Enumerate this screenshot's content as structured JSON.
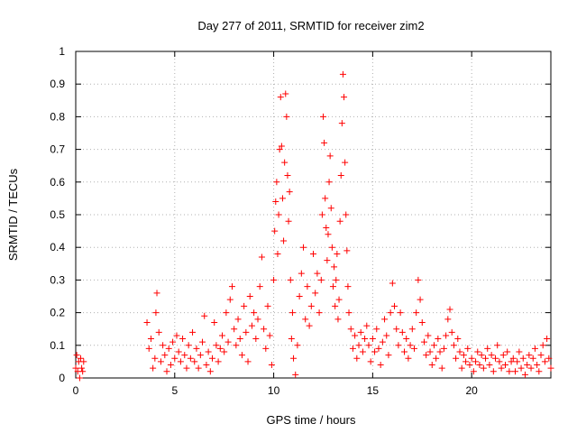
{
  "chart_data": {
    "type": "scatter",
    "title": "Day 277 of 2011, SRMTID for receiver zim2",
    "xlabel": "GPS time / hours",
    "ylabel": "SRMTID / TECUs",
    "xlim": [
      0,
      24
    ],
    "ylim": [
      0,
      1
    ],
    "xticks": [
      0,
      5,
      10,
      15,
      20
    ],
    "xtick_labels": [
      "0",
      "5",
      "10",
      "15",
      "20"
    ],
    "yticks": [
      0,
      0.1,
      0.2,
      0.3,
      0.4,
      0.5,
      0.6,
      0.7,
      0.8,
      0.9,
      1
    ],
    "ytick_labels": [
      "0",
      "0.1",
      "0.2",
      "0.3",
      "0.4",
      "0.5",
      "0.6",
      "0.7",
      "0.8",
      "0.9",
      "1"
    ],
    "grid": true,
    "marker": "plus",
    "series": [
      {
        "name": "zim2",
        "color": "#ff0000",
        "points": [
          [
            0.0,
            0.03
          ],
          [
            0.05,
            0.07
          ],
          [
            0.1,
            0.02
          ],
          [
            0.15,
            0.05
          ],
          [
            0.2,
            0.0
          ],
          [
            0.25,
            0.06
          ],
          [
            0.3,
            0.03
          ],
          [
            0.35,
            0.02
          ],
          [
            0.4,
            0.05
          ],
          [
            3.6,
            0.17
          ],
          [
            3.7,
            0.09
          ],
          [
            3.8,
            0.12
          ],
          [
            3.9,
            0.03
          ],
          [
            4.0,
            0.06
          ],
          [
            4.05,
            0.2
          ],
          [
            4.1,
            0.26
          ],
          [
            4.2,
            0.14
          ],
          [
            4.3,
            0.05
          ],
          [
            4.4,
            0.1
          ],
          [
            4.5,
            0.07
          ],
          [
            4.6,
            0.02
          ],
          [
            4.7,
            0.09
          ],
          [
            4.8,
            0.04
          ],
          [
            4.9,
            0.11
          ],
          [
            5.0,
            0.06
          ],
          [
            5.1,
            0.13
          ],
          [
            5.2,
            0.08
          ],
          [
            5.3,
            0.05
          ],
          [
            5.4,
            0.12
          ],
          [
            5.5,
            0.07
          ],
          [
            5.6,
            0.03
          ],
          [
            5.7,
            0.1
          ],
          [
            5.8,
            0.06
          ],
          [
            5.9,
            0.14
          ],
          [
            6.0,
            0.05
          ],
          [
            6.1,
            0.09
          ],
          [
            6.2,
            0.03
          ],
          [
            6.3,
            0.07
          ],
          [
            6.4,
            0.11
          ],
          [
            6.5,
            0.19
          ],
          [
            6.6,
            0.04
          ],
          [
            6.7,
            0.08
          ],
          [
            6.8,
            0.02
          ],
          [
            6.9,
            0.06
          ],
          [
            7.0,
            0.17
          ],
          [
            7.1,
            0.1
          ],
          [
            7.2,
            0.05
          ],
          [
            7.3,
            0.09
          ],
          [
            7.4,
            0.13
          ],
          [
            7.5,
            0.08
          ],
          [
            7.6,
            0.2
          ],
          [
            7.7,
            0.11
          ],
          [
            7.8,
            0.24
          ],
          [
            7.9,
            0.28
          ],
          [
            8.0,
            0.15
          ],
          [
            8.1,
            0.1
          ],
          [
            8.2,
            0.18
          ],
          [
            8.3,
            0.12
          ],
          [
            8.4,
            0.07
          ],
          [
            8.5,
            0.22
          ],
          [
            8.6,
            0.14
          ],
          [
            8.7,
            0.05
          ],
          [
            8.8,
            0.25
          ],
          [
            8.9,
            0.16
          ],
          [
            9.0,
            0.2
          ],
          [
            9.1,
            0.12
          ],
          [
            9.2,
            0.18
          ],
          [
            9.3,
            0.28
          ],
          [
            9.4,
            0.37
          ],
          [
            9.5,
            0.15
          ],
          [
            9.6,
            0.09
          ],
          [
            9.7,
            0.22
          ],
          [
            9.8,
            0.13
          ],
          [
            9.9,
            0.04
          ],
          [
            10.0,
            0.3
          ],
          [
            10.05,
            0.45
          ],
          [
            10.1,
            0.54
          ],
          [
            10.15,
            0.6
          ],
          [
            10.2,
            0.38
          ],
          [
            10.25,
            0.5
          ],
          [
            10.3,
            0.7
          ],
          [
            10.35,
            0.86
          ],
          [
            10.4,
            0.71
          ],
          [
            10.45,
            0.55
          ],
          [
            10.5,
            0.42
          ],
          [
            10.55,
            0.66
          ],
          [
            10.6,
            0.87
          ],
          [
            10.65,
            0.8
          ],
          [
            10.7,
            0.62
          ],
          [
            10.75,
            0.48
          ],
          [
            10.8,
            0.57
          ],
          [
            10.85,
            0.3
          ],
          [
            10.9,
            0.12
          ],
          [
            10.95,
            0.2
          ],
          [
            11.0,
            0.06
          ],
          [
            11.1,
            0.01
          ],
          [
            11.2,
            0.1
          ],
          [
            11.3,
            0.25
          ],
          [
            11.4,
            0.32
          ],
          [
            11.5,
            0.4
          ],
          [
            11.6,
            0.18
          ],
          [
            11.7,
            0.28
          ],
          [
            11.8,
            0.16
          ],
          [
            11.9,
            0.22
          ],
          [
            12.0,
            0.38
          ],
          [
            12.1,
            0.26
          ],
          [
            12.2,
            0.32
          ],
          [
            12.3,
            0.2
          ],
          [
            12.4,
            0.3
          ],
          [
            12.45,
            0.5
          ],
          [
            12.5,
            0.8
          ],
          [
            12.55,
            0.72
          ],
          [
            12.6,
            0.55
          ],
          [
            12.65,
            0.46
          ],
          [
            12.7,
            0.36
          ],
          [
            12.75,
            0.44
          ],
          [
            12.8,
            0.6
          ],
          [
            12.85,
            0.68
          ],
          [
            12.9,
            0.52
          ],
          [
            12.95,
            0.4
          ],
          [
            13.0,
            0.28
          ],
          [
            13.05,
            0.34
          ],
          [
            13.1,
            0.22
          ],
          [
            13.15,
            0.3
          ],
          [
            13.2,
            0.38
          ],
          [
            13.25,
            0.18
          ],
          [
            13.3,
            0.24
          ],
          [
            13.35,
            0.48
          ],
          [
            13.4,
            0.62
          ],
          [
            13.45,
            0.78
          ],
          [
            13.5,
            0.93
          ],
          [
            13.55,
            0.86
          ],
          [
            13.6,
            0.66
          ],
          [
            13.65,
            0.5
          ],
          [
            13.7,
            0.39
          ],
          [
            13.75,
            0.28
          ],
          [
            13.8,
            0.2
          ],
          [
            13.9,
            0.15
          ],
          [
            14.0,
            0.09
          ],
          [
            14.1,
            0.13
          ],
          [
            14.2,
            0.06
          ],
          [
            14.3,
            0.1
          ],
          [
            14.4,
            0.14
          ],
          [
            14.5,
            0.08
          ],
          [
            14.6,
            0.12
          ],
          [
            14.7,
            0.16
          ],
          [
            14.8,
            0.1
          ],
          [
            14.9,
            0.05
          ],
          [
            15.0,
            0.12
          ],
          [
            15.1,
            0.08
          ],
          [
            15.2,
            0.15
          ],
          [
            15.3,
            0.09
          ],
          [
            15.4,
            0.04
          ],
          [
            15.5,
            0.11
          ],
          [
            15.6,
            0.18
          ],
          [
            15.7,
            0.13
          ],
          [
            15.8,
            0.07
          ],
          [
            15.9,
            0.2
          ],
          [
            16.0,
            0.29
          ],
          [
            16.1,
            0.22
          ],
          [
            16.2,
            0.15
          ],
          [
            16.3,
            0.1
          ],
          [
            16.4,
            0.2
          ],
          [
            16.5,
            0.14
          ],
          [
            16.6,
            0.08
          ],
          [
            16.7,
            0.12
          ],
          [
            16.8,
            0.06
          ],
          [
            16.9,
            0.1
          ],
          [
            17.0,
            0.15
          ],
          [
            17.1,
            0.09
          ],
          [
            17.2,
            0.2
          ],
          [
            17.3,
            0.3
          ],
          [
            17.4,
            0.24
          ],
          [
            17.5,
            0.17
          ],
          [
            17.6,
            0.11
          ],
          [
            17.7,
            0.07
          ],
          [
            17.8,
            0.13
          ],
          [
            17.9,
            0.08
          ],
          [
            18.0,
            0.04
          ],
          [
            18.1,
            0.1
          ],
          [
            18.2,
            0.06
          ],
          [
            18.3,
            0.12
          ],
          [
            18.4,
            0.08
          ],
          [
            18.5,
            0.03
          ],
          [
            18.6,
            0.09
          ],
          [
            18.7,
            0.13
          ],
          [
            18.8,
            0.18
          ],
          [
            18.9,
            0.21
          ],
          [
            19.0,
            0.14
          ],
          [
            19.1,
            0.1
          ],
          [
            19.2,
            0.06
          ],
          [
            19.3,
            0.12
          ],
          [
            19.4,
            0.08
          ],
          [
            19.5,
            0.03
          ],
          [
            19.6,
            0.07
          ],
          [
            19.7,
            0.05
          ],
          [
            19.8,
            0.09
          ],
          [
            19.9,
            0.04
          ],
          [
            20.0,
            0.06
          ],
          [
            20.1,
            0.02
          ],
          [
            20.2,
            0.05
          ],
          [
            20.3,
            0.08
          ],
          [
            20.4,
            0.04
          ],
          [
            20.5,
            0.07
          ],
          [
            20.6,
            0.03
          ],
          [
            20.7,
            0.06
          ],
          [
            20.8,
            0.09
          ],
          [
            20.9,
            0.04
          ],
          [
            21.0,
            0.07
          ],
          [
            21.1,
            0.02
          ],
          [
            21.2,
            0.06
          ],
          [
            21.3,
            0.1
          ],
          [
            21.4,
            0.05
          ],
          [
            21.5,
            0.03
          ],
          [
            21.6,
            0.07
          ],
          [
            21.7,
            0.04
          ],
          [
            21.8,
            0.08
          ],
          [
            21.9,
            0.02
          ],
          [
            22.0,
            0.05
          ],
          [
            22.1,
            0.06
          ],
          [
            22.2,
            0.02
          ],
          [
            22.3,
            0.05
          ],
          [
            22.4,
            0.08
          ],
          [
            22.5,
            0.03
          ],
          [
            22.6,
            0.06
          ],
          [
            22.7,
            0.01
          ],
          [
            22.8,
            0.04
          ],
          [
            22.9,
            0.07
          ],
          [
            23.0,
            0.03
          ],
          [
            23.1,
            0.06
          ],
          [
            23.2,
            0.09
          ],
          [
            23.3,
            0.04
          ],
          [
            23.4,
            0.02
          ],
          [
            23.5,
            0.07
          ],
          [
            23.6,
            0.1
          ],
          [
            23.7,
            0.05
          ],
          [
            23.8,
            0.12
          ],
          [
            23.9,
            0.06
          ],
          [
            24.0,
            0.03
          ]
        ]
      }
    ]
  }
}
